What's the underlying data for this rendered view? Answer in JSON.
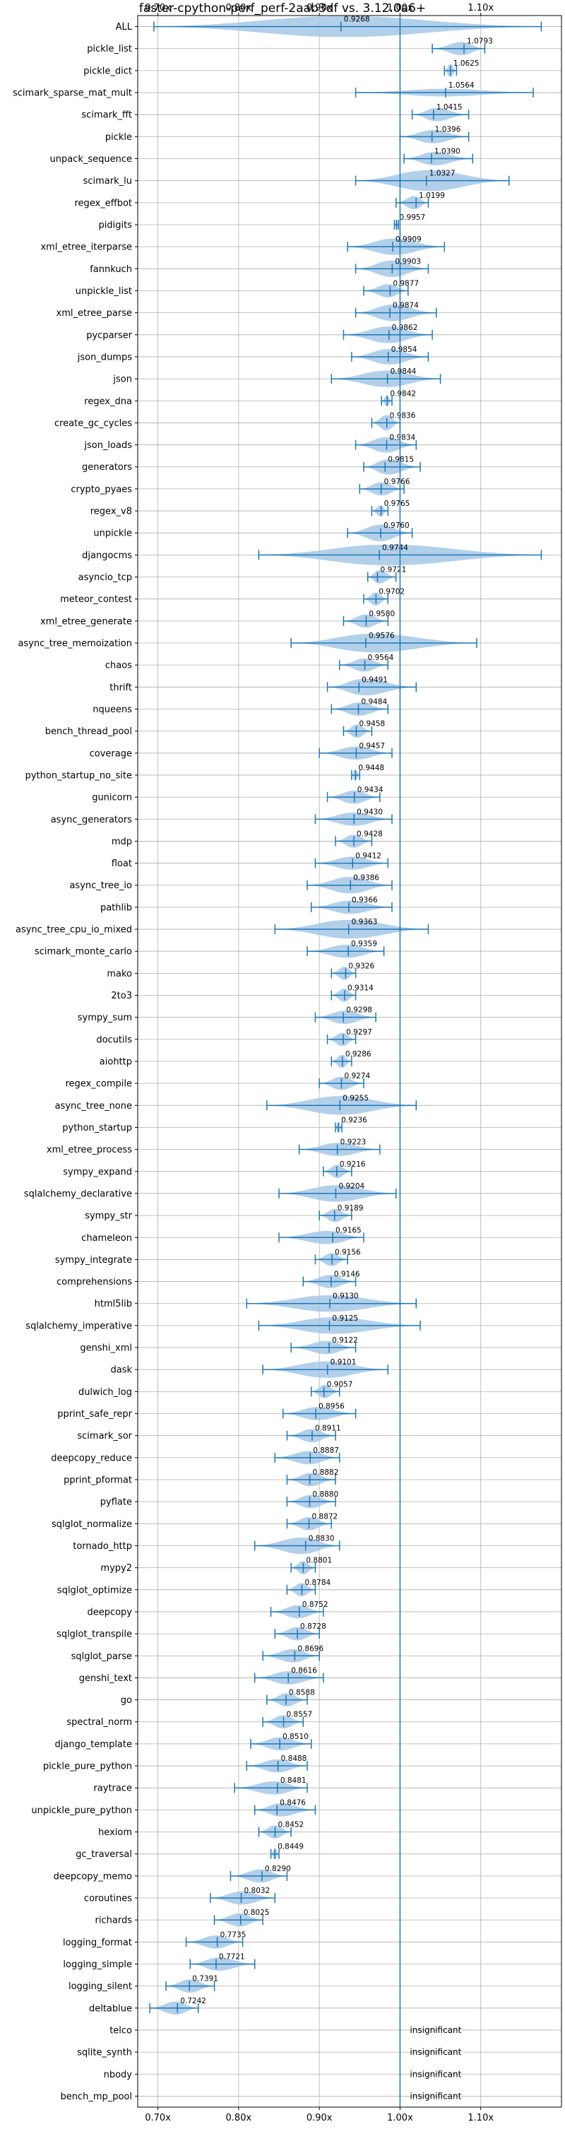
{
  "chart_data": {
    "type": "violin",
    "title": "faster-cpython-perf_perf-2aab3df vs. 3.12.0a6+",
    "xlim": [
      0.675,
      1.2
    ],
    "xticks": [
      {
        "value": 0.7,
        "label": "0.70x"
      },
      {
        "value": 0.8,
        "label": "0.80x"
      },
      {
        "value": 0.9,
        "label": "0.90x"
      },
      {
        "value": 1.0,
        "label": "1.00x"
      },
      {
        "value": 1.1,
        "label": "1.10x"
      }
    ],
    "reference_line": 1.0,
    "grid": true,
    "color": "#1f77b4",
    "violin_color": "#a6c8e8",
    "insignificant_label": "insignificant",
    "benchmarks": [
      {
        "name": "ALL",
        "value": 0.9268,
        "min": 0.695,
        "max": 1.175,
        "width": 0.95
      },
      {
        "name": "pickle_list",
        "value": 1.0793,
        "min": 1.04,
        "max": 1.105,
        "width": 0.6
      },
      {
        "name": "pickle_dict",
        "value": 1.0625,
        "min": 1.055,
        "max": 1.07,
        "width": 0.6
      },
      {
        "name": "scimark_sparse_mat_mult",
        "value": 1.0564,
        "min": 0.945,
        "max": 1.165,
        "width": 0.35
      },
      {
        "name": "scimark_fft",
        "value": 1.0415,
        "min": 1.015,
        "max": 1.085,
        "width": 0.6
      },
      {
        "name": "pickle",
        "value": 1.0396,
        "min": 1.0,
        "max": 1.085,
        "width": 0.6
      },
      {
        "name": "unpack_sequence",
        "value": 1.039,
        "min": 1.005,
        "max": 1.09,
        "width": 0.6
      },
      {
        "name": "scimark_lu",
        "value": 1.0327,
        "min": 0.945,
        "max": 1.135,
        "width": 0.95
      },
      {
        "name": "regex_effbot",
        "value": 1.0199,
        "min": 0.995,
        "max": 1.035,
        "width": 0.6
      },
      {
        "name": "pidigits",
        "value": 0.9957,
        "min": 0.993,
        "max": 0.998,
        "width": 0.4
      },
      {
        "name": "xml_etree_iterparse",
        "value": 0.9909,
        "min": 0.935,
        "max": 1.055,
        "width": 0.75
      },
      {
        "name": "fannkuch",
        "value": 0.9903,
        "min": 0.945,
        "max": 1.035,
        "width": 0.75
      },
      {
        "name": "unpickle_list",
        "value": 0.9877,
        "min": 0.955,
        "max": 1.01,
        "width": 0.6
      },
      {
        "name": "xml_etree_parse",
        "value": 0.9874,
        "min": 0.945,
        "max": 1.045,
        "width": 0.75
      },
      {
        "name": "pycparser",
        "value": 0.9862,
        "min": 0.93,
        "max": 1.04,
        "width": 0.75
      },
      {
        "name": "json_dumps",
        "value": 0.9854,
        "min": 0.94,
        "max": 1.035,
        "width": 0.7
      },
      {
        "name": "json",
        "value": 0.9844,
        "min": 0.915,
        "max": 1.05,
        "width": 0.75
      },
      {
        "name": "regex_dna",
        "value": 0.9842,
        "min": 0.977,
        "max": 0.99,
        "width": 0.5
      },
      {
        "name": "create_gc_cycles",
        "value": 0.9836,
        "min": 0.965,
        "max": 1.0,
        "width": 0.7
      },
      {
        "name": "json_loads",
        "value": 0.9834,
        "min": 0.945,
        "max": 1.02,
        "width": 0.7
      },
      {
        "name": "generators",
        "value": 0.9815,
        "min": 0.955,
        "max": 1.025,
        "width": 0.7
      },
      {
        "name": "crypto_pyaes",
        "value": 0.9766,
        "min": 0.95,
        "max": 1.005,
        "width": 0.6
      },
      {
        "name": "regex_v8",
        "value": 0.9765,
        "min": 0.965,
        "max": 0.985,
        "width": 0.5
      },
      {
        "name": "unpickle",
        "value": 0.976,
        "min": 0.935,
        "max": 1.015,
        "width": 0.75
      },
      {
        "name": "djangocms",
        "value": 0.9744,
        "min": 0.825,
        "max": 1.175,
        "width": 0.95
      },
      {
        "name": "asyncio_tcp",
        "value": 0.9721,
        "min": 0.96,
        "max": 0.995,
        "width": 0.6
      },
      {
        "name": "meteor_contest",
        "value": 0.9702,
        "min": 0.955,
        "max": 0.985,
        "width": 0.6
      },
      {
        "name": "xml_etree_generate",
        "value": 0.958,
        "min": 0.93,
        "max": 0.985,
        "width": 0.6
      },
      {
        "name": "async_tree_memoization",
        "value": 0.9576,
        "min": 0.865,
        "max": 1.095,
        "width": 0.85
      },
      {
        "name": "chaos",
        "value": 0.9564,
        "min": 0.925,
        "max": 0.985,
        "width": 0.6
      },
      {
        "name": "thrift",
        "value": 0.9491,
        "min": 0.91,
        "max": 1.02,
        "width": 0.75
      },
      {
        "name": "nqueens",
        "value": 0.9484,
        "min": 0.915,
        "max": 0.985,
        "width": 0.6
      },
      {
        "name": "bench_thread_pool",
        "value": 0.9458,
        "min": 0.93,
        "max": 0.965,
        "width": 0.6
      },
      {
        "name": "coverage",
        "value": 0.9457,
        "min": 0.9,
        "max": 0.99,
        "width": 0.6
      },
      {
        "name": "python_startup_no_site",
        "value": 0.9448,
        "min": 0.94,
        "max": 0.95,
        "width": 0.5
      },
      {
        "name": "gunicorn",
        "value": 0.9434,
        "min": 0.91,
        "max": 0.975,
        "width": 0.6
      },
      {
        "name": "async_generators",
        "value": 0.943,
        "min": 0.895,
        "max": 0.99,
        "width": 0.6
      },
      {
        "name": "mdp",
        "value": 0.9428,
        "min": 0.92,
        "max": 0.965,
        "width": 0.6
      },
      {
        "name": "float",
        "value": 0.9412,
        "min": 0.895,
        "max": 0.985,
        "width": 0.6
      },
      {
        "name": "async_tree_io",
        "value": 0.9386,
        "min": 0.885,
        "max": 0.99,
        "width": 0.75
      },
      {
        "name": "pathlib",
        "value": 0.9366,
        "min": 0.89,
        "max": 0.99,
        "width": 0.6
      },
      {
        "name": "async_tree_cpu_io_mixed",
        "value": 0.9363,
        "min": 0.845,
        "max": 1.035,
        "width": 0.85
      },
      {
        "name": "scimark_monte_carlo",
        "value": 0.9359,
        "min": 0.885,
        "max": 0.98,
        "width": 0.6
      },
      {
        "name": "mako",
        "value": 0.9326,
        "min": 0.915,
        "max": 0.945,
        "width": 0.6
      },
      {
        "name": "2to3",
        "value": 0.9314,
        "min": 0.915,
        "max": 0.945,
        "width": 0.6
      },
      {
        "name": "sympy_sum",
        "value": 0.9298,
        "min": 0.895,
        "max": 0.97,
        "width": 0.6
      },
      {
        "name": "docutils",
        "value": 0.9297,
        "min": 0.91,
        "max": 0.945,
        "width": 0.6
      },
      {
        "name": "aiohttp",
        "value": 0.9286,
        "min": 0.915,
        "max": 0.94,
        "width": 0.6
      },
      {
        "name": "regex_compile",
        "value": 0.9274,
        "min": 0.9,
        "max": 0.955,
        "width": 0.6
      },
      {
        "name": "async_tree_none",
        "value": 0.9255,
        "min": 0.835,
        "max": 1.02,
        "width": 0.85
      },
      {
        "name": "python_startup",
        "value": 0.9236,
        "min": 0.92,
        "max": 0.928,
        "width": 0.5
      },
      {
        "name": "xml_etree_process",
        "value": 0.9223,
        "min": 0.875,
        "max": 0.975,
        "width": 0.6
      },
      {
        "name": "sympy_expand",
        "value": 0.9216,
        "min": 0.905,
        "max": 0.94,
        "width": 0.6
      },
      {
        "name": "sqlalchemy_declarative",
        "value": 0.9204,
        "min": 0.85,
        "max": 0.995,
        "width": 0.75
      },
      {
        "name": "sympy_str",
        "value": 0.9189,
        "min": 0.9,
        "max": 0.94,
        "width": 0.6
      },
      {
        "name": "chameleon",
        "value": 0.9165,
        "min": 0.85,
        "max": 0.955,
        "width": 0.6
      },
      {
        "name": "sympy_integrate",
        "value": 0.9156,
        "min": 0.895,
        "max": 0.935,
        "width": 0.6
      },
      {
        "name": "comprehensions",
        "value": 0.9146,
        "min": 0.88,
        "max": 0.945,
        "width": 0.6
      },
      {
        "name": "html5lib",
        "value": 0.913,
        "min": 0.81,
        "max": 1.02,
        "width": 0.75
      },
      {
        "name": "sqlalchemy_imperative",
        "value": 0.9125,
        "min": 0.825,
        "max": 1.025,
        "width": 0.75
      },
      {
        "name": "genshi_xml",
        "value": 0.9122,
        "min": 0.865,
        "max": 0.945,
        "width": 0.6
      },
      {
        "name": "dask",
        "value": 0.9101,
        "min": 0.83,
        "max": 0.985,
        "width": 0.75
      },
      {
        "name": "dulwich_log",
        "value": 0.9057,
        "min": 0.89,
        "max": 0.925,
        "width": 0.6
      },
      {
        "name": "pprint_safe_repr",
        "value": 0.8956,
        "min": 0.855,
        "max": 0.945,
        "width": 0.6
      },
      {
        "name": "scimark_sor",
        "value": 0.8911,
        "min": 0.86,
        "max": 0.92,
        "width": 0.6
      },
      {
        "name": "deepcopy_reduce",
        "value": 0.8887,
        "min": 0.845,
        "max": 0.925,
        "width": 0.6
      },
      {
        "name": "pprint_pformat",
        "value": 0.8882,
        "min": 0.86,
        "max": 0.92,
        "width": 0.6
      },
      {
        "name": "pyflate",
        "value": 0.888,
        "min": 0.86,
        "max": 0.92,
        "width": 0.6
      },
      {
        "name": "sqlglot_normalize",
        "value": 0.8872,
        "min": 0.86,
        "max": 0.915,
        "width": 0.6
      },
      {
        "name": "tornado_http",
        "value": 0.883,
        "min": 0.82,
        "max": 0.925,
        "width": 0.75
      },
      {
        "name": "mypy2",
        "value": 0.8801,
        "min": 0.865,
        "max": 0.895,
        "width": 0.6
      },
      {
        "name": "sqlglot_optimize",
        "value": 0.8784,
        "min": 0.86,
        "max": 0.895,
        "width": 0.6
      },
      {
        "name": "deepcopy",
        "value": 0.8752,
        "min": 0.84,
        "max": 0.905,
        "width": 0.6
      },
      {
        "name": "sqlglot_transpile",
        "value": 0.8728,
        "min": 0.845,
        "max": 0.9,
        "width": 0.6
      },
      {
        "name": "sqlglot_parse",
        "value": 0.8696,
        "min": 0.83,
        "max": 0.9,
        "width": 0.6
      },
      {
        "name": "genshi_text",
        "value": 0.8616,
        "min": 0.82,
        "max": 0.905,
        "width": 0.6
      },
      {
        "name": "go",
        "value": 0.8588,
        "min": 0.835,
        "max": 0.885,
        "width": 0.6
      },
      {
        "name": "spectral_norm",
        "value": 0.8557,
        "min": 0.83,
        "max": 0.88,
        "width": 0.6
      },
      {
        "name": "django_template",
        "value": 0.851,
        "min": 0.815,
        "max": 0.89,
        "width": 0.6
      },
      {
        "name": "pickle_pure_python",
        "value": 0.8488,
        "min": 0.81,
        "max": 0.885,
        "width": 0.6
      },
      {
        "name": "raytrace",
        "value": 0.8481,
        "min": 0.795,
        "max": 0.885,
        "width": 0.6
      },
      {
        "name": "unpickle_pure_python",
        "value": 0.8476,
        "min": 0.82,
        "max": 0.895,
        "width": 0.6
      },
      {
        "name": "hexiom",
        "value": 0.8452,
        "min": 0.825,
        "max": 0.865,
        "width": 0.6
      },
      {
        "name": "gc_traversal",
        "value": 0.8449,
        "min": 0.84,
        "max": 0.85,
        "width": 0.5
      },
      {
        "name": "deepcopy_memo",
        "value": 0.829,
        "min": 0.79,
        "max": 0.86,
        "width": 0.6
      },
      {
        "name": "coroutines",
        "value": 0.8032,
        "min": 0.765,
        "max": 0.845,
        "width": 0.6
      },
      {
        "name": "richards",
        "value": 0.8025,
        "min": 0.77,
        "max": 0.83,
        "width": 0.6
      },
      {
        "name": "logging_format",
        "value": 0.7735,
        "min": 0.735,
        "max": 0.805,
        "width": 0.6
      },
      {
        "name": "logging_simple",
        "value": 0.7721,
        "min": 0.74,
        "max": 0.82,
        "width": 0.6
      },
      {
        "name": "logging_silent",
        "value": 0.7391,
        "min": 0.71,
        "max": 0.77,
        "width": 0.6
      },
      {
        "name": "deltablue",
        "value": 0.7242,
        "min": 0.69,
        "max": 0.75,
        "width": 0.6
      },
      {
        "name": "telco",
        "insignificant": true
      },
      {
        "name": "sqlite_synth",
        "insignificant": true
      },
      {
        "name": "nbody",
        "insignificant": true
      },
      {
        "name": "bench_mp_pool",
        "insignificant": true
      }
    ]
  }
}
